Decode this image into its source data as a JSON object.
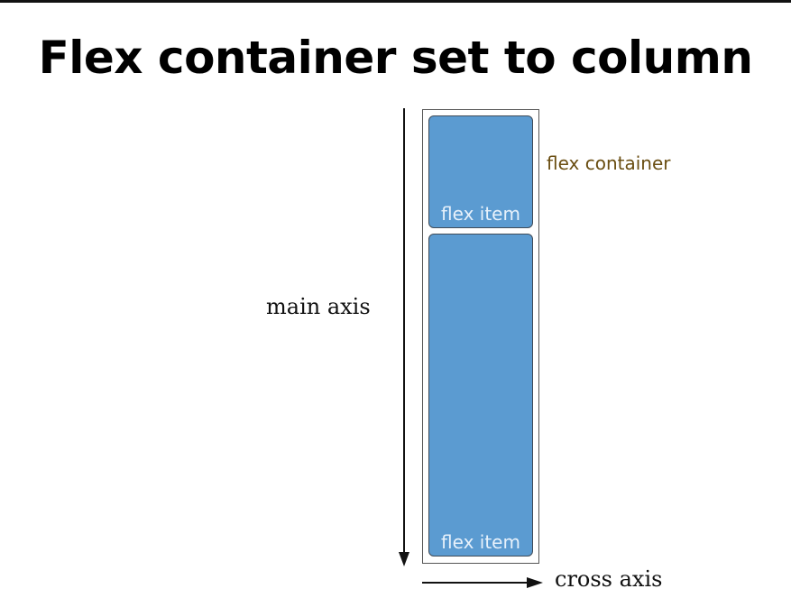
{
  "title": "Flex container set to column",
  "flex_container": {
    "label": "flex container",
    "items": [
      {
        "label": "flex item"
      },
      {
        "label": "flex item"
      }
    ]
  },
  "axes": {
    "main_axis_label": "main axis",
    "cross_axis_label": "cross axis"
  },
  "colors": {
    "item_fill": "#5b9bd1",
    "item_label": "#e7f1fb",
    "container_label": "#6a4e12",
    "container_border": "#555555"
  }
}
